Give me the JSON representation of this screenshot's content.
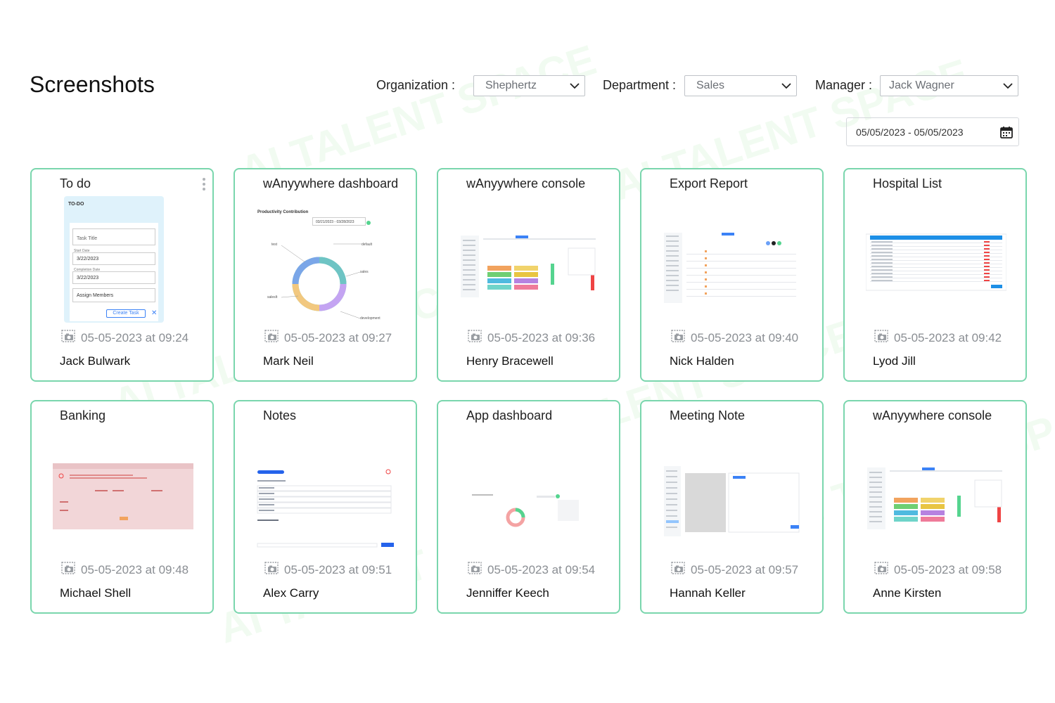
{
  "page": {
    "title": "Screenshots"
  },
  "filters": {
    "organization": {
      "label": "Organization :",
      "value": "Shephertz"
    },
    "department": {
      "label": "Department :",
      "value": "Sales"
    },
    "manager": {
      "label": "Manager :",
      "value": "Jack Wagner"
    },
    "date_range": "05/05/2023 - 05/05/2023"
  },
  "cards": [
    {
      "title": "To do",
      "time": "05-05-2023 at 09:24",
      "user": "Jack Bulwark",
      "thumb": "todo",
      "todo": {
        "header": "TO-DO",
        "task_title": "Task Title",
        "start_label": "Start Date",
        "start": "3/22/2023",
        "end_label": "Completion Date",
        "end": "3/22/2023",
        "assign": "Assign Members",
        "create": "Create Task"
      }
    },
    {
      "title": "wAnyywhere dashboard",
      "time": "05-05-2023 at 09:27",
      "user": "Mark Neil",
      "thumb": "donut",
      "donut": {
        "heading": "Productivity Contribution",
        "range": "03/21/2023 - 03/28/2023",
        "labels": [
          "test",
          "default",
          "sales",
          "salesIt",
          "development"
        ]
      }
    },
    {
      "title": "wAnyywhere console",
      "time": "05-05-2023 at 09:36",
      "user": "Henry Bracewell",
      "thumb": "console"
    },
    {
      "title": "Export Report",
      "time": "05-05-2023 at 09:40",
      "user": "Nick Halden",
      "thumb": "report"
    },
    {
      "title": "Hospital List",
      "time": "05-05-2023 at 09:42",
      "user": "Lyod Jill",
      "thumb": "hospital"
    },
    {
      "title": "Banking",
      "time": "05-05-2023 at 09:48",
      "user": "Michael Shell",
      "thumb": "banking"
    },
    {
      "title": "Notes",
      "time": "05-05-2023 at 09:51",
      "user": "Alex Carry",
      "thumb": "notes"
    },
    {
      "title": "App dashboard",
      "time": "05-05-2023 at 09:54",
      "user": "Jenniffer Keech",
      "thumb": "appdash"
    },
    {
      "title": "Meeting Note",
      "time": "05-05-2023 at 09:57",
      "user": "Hannah Keller",
      "thumb": "meeting"
    },
    {
      "title": "wAnyywhere console",
      "time": "05-05-2023 at 09:58",
      "user": "Anne Kirsten",
      "thumb": "console"
    }
  ],
  "colors": {
    "card_border": "#7ad6ad",
    "accent": "#3b82f6"
  },
  "icons": {
    "chevron": "chevron-down-icon",
    "calendar": "calendar-icon",
    "camera": "camera-icon",
    "menu": "kebab-menu-icon"
  }
}
